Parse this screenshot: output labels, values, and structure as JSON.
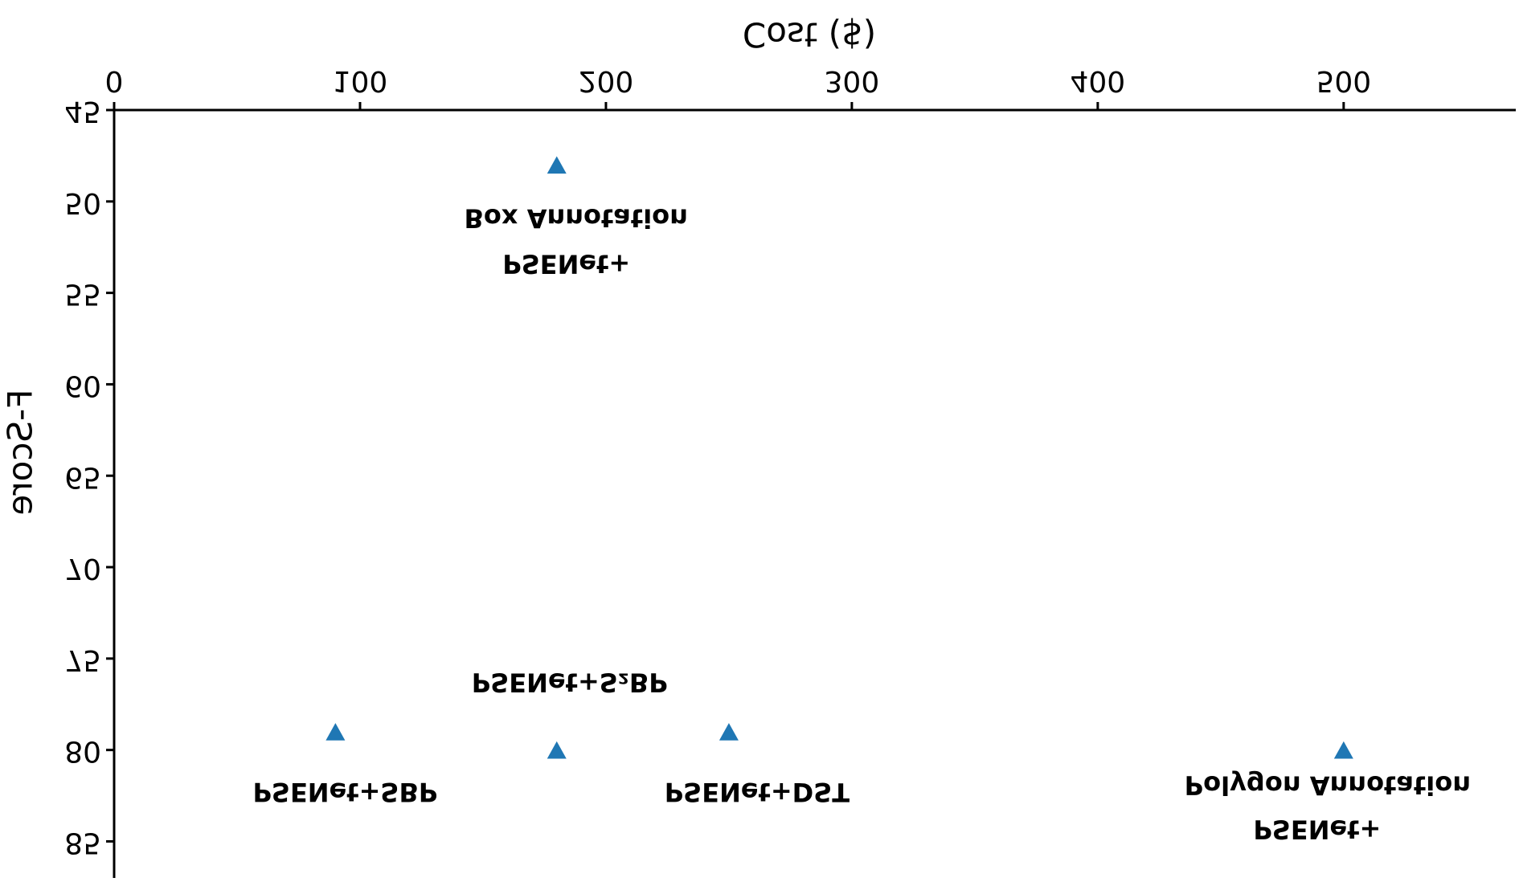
{
  "chart_data": {
    "type": "scatter",
    "xlabel": "Cost ($)",
    "ylabel": "F-Score",
    "x": [
      180,
      90,
      180,
      250,
      500
    ],
    "values": [
      48,
      79,
      80,
      79,
      80
    ],
    "labels": [
      [
        "PSENet+",
        "Box Annotation"
      ],
      [
        "PSENet+SBP"
      ],
      [
        "PSENet+S₂BP"
      ],
      [
        "PSENet+DST"
      ],
      [
        "PSENet+",
        "Polygon Annotation"
      ]
    ],
    "color": "#1f77b4",
    "marker": "triangle",
    "xlim": [
      0,
      570
    ],
    "ylim": [
      45,
      87
    ],
    "xticks": [
      0,
      100,
      200,
      300,
      400,
      500
    ],
    "yticks": [
      45,
      50,
      55,
      60,
      65,
      70,
      75,
      80,
      85
    ],
    "flipped_vertically": true
  }
}
